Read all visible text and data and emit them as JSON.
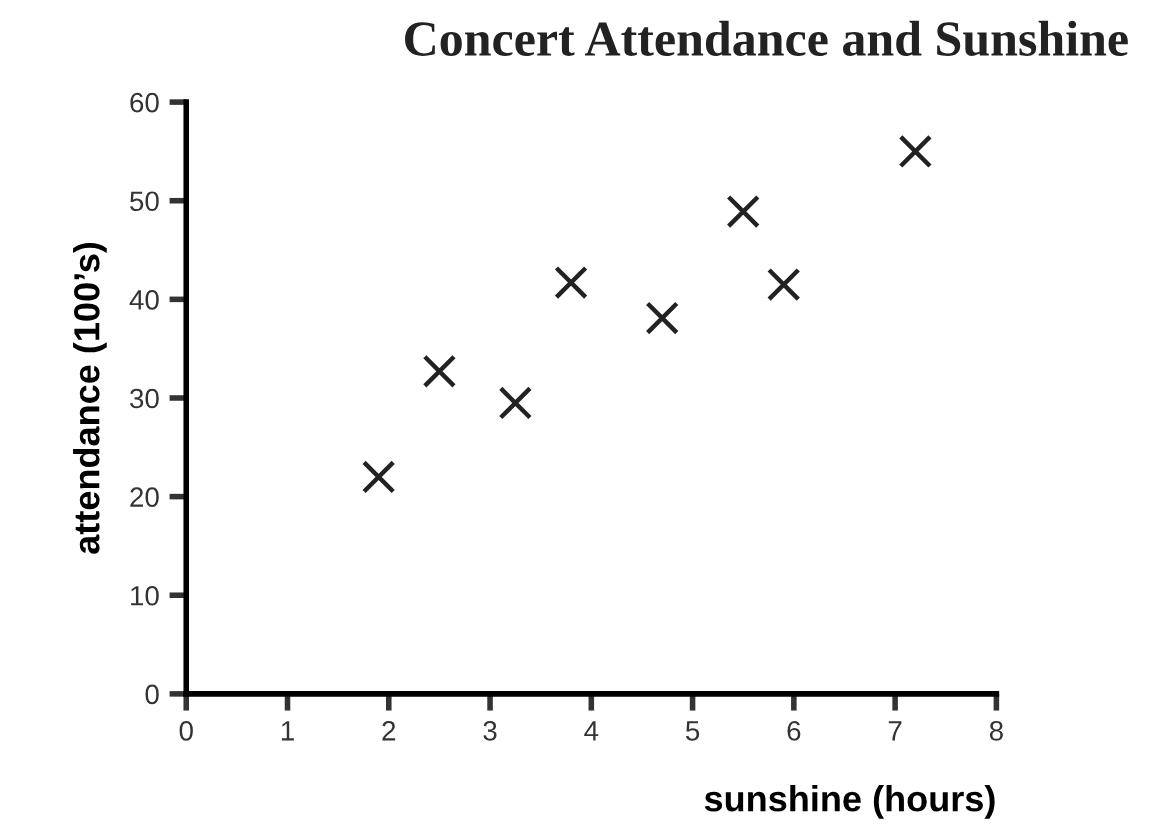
{
  "chart_data": {
    "type": "scatter",
    "title": "Concert Attendance and Sunshine",
    "xlabel": "sunshine (hours)",
    "ylabel": "attendance (100’s)",
    "x": [
      1.9,
      2.5,
      3.25,
      3.8,
      4.7,
      5.5,
      5.9,
      7.2
    ],
    "series": [
      {
        "color": "#222222",
        "values": [
          22,
          32.7,
          29.5,
          41.7,
          38.1,
          48.9,
          41.5,
          55
        ]
      }
    ],
    "marker": "cross",
    "xlim": [
      0,
      8
    ],
    "ylim": [
      0,
      60
    ],
    "xticks": [
      0,
      1,
      2,
      3,
      4,
      5,
      6,
      7,
      8
    ],
    "yticks": [
      0,
      10,
      20,
      30,
      40,
      50,
      60
    ],
    "grid": false,
    "legend": false
  }
}
